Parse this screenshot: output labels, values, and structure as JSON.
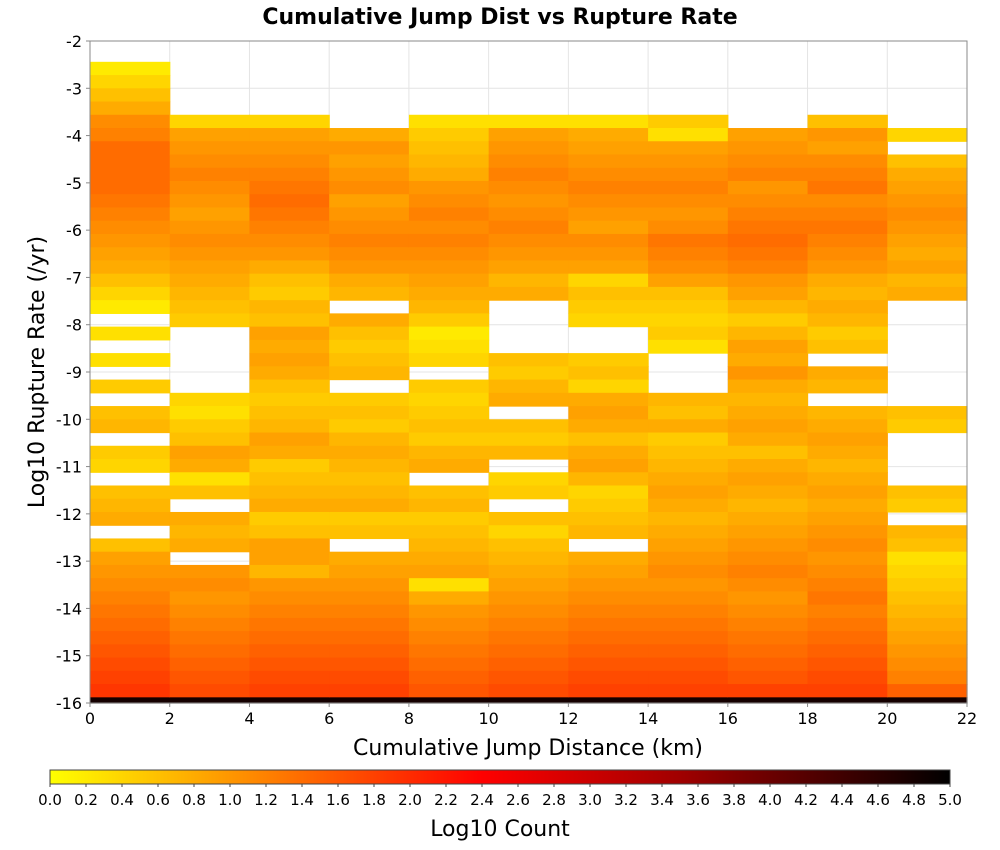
{
  "chart_data": {
    "type": "heatmap",
    "title": "Cumulative Jump Dist vs Rupture Rate",
    "xlabel": "Cumulative Jump Distance (km)",
    "ylabel": "Log10 Rupture Rate (/yr)",
    "xlim": [
      0,
      22
    ],
    "ylim": [
      -16,
      -2
    ],
    "x_ticks": [
      "0",
      "2",
      "4",
      "6",
      "8",
      "10",
      "12",
      "14",
      "16",
      "18",
      "20",
      "22"
    ],
    "y_ticks": [
      "-2",
      "-3",
      "-4",
      "-5",
      "-6",
      "-7",
      "-8",
      "-9",
      "-10",
      "-11",
      "-12",
      "-13",
      "-14",
      "-15",
      "-16"
    ],
    "grid": true,
    "x_bin_width": 2,
    "y_bin_height": 0.28,
    "x_bin_centers": [
      1,
      3,
      5,
      7,
      9,
      11,
      13,
      15,
      17,
      19,
      21
    ],
    "y_bin_lower_edges": [
      -2.72,
      -3.0,
      -3.28,
      -3.56,
      -3.84,
      -4.12,
      -4.4,
      -4.68,
      -4.96,
      -5.24,
      -5.52,
      -5.8,
      -6.08,
      -6.36,
      -6.64,
      -6.92,
      -7.2,
      -7.48,
      -7.76,
      -8.04,
      -8.32,
      -8.6,
      -8.88,
      -9.16,
      -9.44,
      -9.72,
      -10.0,
      -10.28,
      -10.56,
      -10.84,
      -11.12,
      -11.4,
      -11.68,
      -11.96,
      -12.24,
      -12.52,
      -12.8,
      -13.08,
      -13.36,
      -13.64,
      -13.92,
      -14.2,
      -14.48,
      -14.76,
      -15.04,
      -15.32,
      -15.6,
      -15.88,
      -16.16
    ],
    "z_label": "Log10 Count",
    "z_range": [
      0,
      5
    ],
    "null_value_rendered_as": "white",
    "z_values_by_x_bin": [
      [
        0.2,
        0.4,
        0.6,
        0.8,
        1.1,
        1.2,
        1.4,
        1.4,
        1.4,
        1.4,
        1.3,
        1.2,
        1.1,
        1.0,
        0.9,
        0.8,
        0.6,
        0.4,
        0.2,
        null,
        0.3,
        null,
        0.3,
        null,
        0.5,
        null,
        0.6,
        0.7,
        null,
        0.5,
        0.4,
        null,
        0.6,
        0.7,
        0.8,
        null,
        0.6,
        0.9,
        1.0,
        1.1,
        1.2,
        1.3,
        1.4,
        1.5,
        1.6,
        1.7,
        1.8,
        1.9,
        4.8
      ],
      [
        null,
        null,
        null,
        null,
        0.4,
        0.9,
        1.0,
        1.1,
        1.2,
        1.1,
        1.0,
        0.9,
        1.0,
        1.1,
        1.0,
        0.9,
        0.8,
        0.7,
        0.6,
        0.5,
        null,
        null,
        null,
        null,
        null,
        0.4,
        0.3,
        0.5,
        0.6,
        0.9,
        0.8,
        0.3,
        0.6,
        null,
        0.8,
        0.7,
        0.8,
        null,
        1.0,
        1.1,
        1.0,
        1.1,
        1.2,
        1.3,
        1.4,
        1.5,
        1.6,
        1.7,
        4.8
      ],
      [
        null,
        null,
        null,
        null,
        0.4,
        0.9,
        1.0,
        1.1,
        1.2,
        1.3,
        1.4,
        1.3,
        1.2,
        1.1,
        1.0,
        0.8,
        0.6,
        0.5,
        0.7,
        0.6,
        0.9,
        0.8,
        0.9,
        0.8,
        0.6,
        0.5,
        0.6,
        0.7,
        0.9,
        0.8,
        0.5,
        0.6,
        0.7,
        0.8,
        0.5,
        0.6,
        0.9,
        0.9,
        0.7,
        1.0,
        1.1,
        1.2,
        1.3,
        1.4,
        1.5,
        1.6,
        1.7,
        1.8,
        4.8
      ],
      [
        null,
        null,
        null,
        null,
        null,
        0.8,
        1.0,
        0.9,
        1.0,
        1.1,
        0.9,
        1.0,
        1.1,
        1.2,
        1.1,
        1.0,
        0.8,
        0.7,
        null,
        0.8,
        0.6,
        0.5,
        0.6,
        0.7,
        null,
        0.5,
        0.6,
        0.5,
        0.7,
        0.8,
        0.7,
        0.6,
        0.7,
        0.8,
        0.5,
        0.6,
        null,
        0.8,
        0.9,
        1.0,
        1.1,
        1.2,
        1.3,
        1.4,
        1.5,
        1.6,
        1.7,
        1.8,
        4.8
      ],
      [
        null,
        null,
        null,
        null,
        0.3,
        0.5,
        0.6,
        0.7,
        0.8,
        1.0,
        1.1,
        1.2,
        1.1,
        1.2,
        1.1,
        1.0,
        0.9,
        0.8,
        0.7,
        0.5,
        0.2,
        0.3,
        0.4,
        null,
        0.5,
        0.4,
        0.5,
        0.6,
        0.5,
        0.7,
        0.8,
        null,
        0.6,
        0.7,
        0.5,
        0.6,
        0.7,
        0.8,
        0.9,
        0.3,
        0.8,
        1.0,
        1.1,
        1.2,
        1.3,
        1.4,
        1.5,
        1.6,
        4.8
      ],
      [
        null,
        null,
        null,
        null,
        0.3,
        0.9,
        1.0,
        1.1,
        1.2,
        1.1,
        1.0,
        1.1,
        1.2,
        1.1,
        1.0,
        0.9,
        0.7,
        0.8,
        null,
        null,
        null,
        null,
        0.6,
        0.5,
        0.7,
        0.8,
        null,
        0.6,
        0.5,
        0.7,
        null,
        0.4,
        0.5,
        null,
        0.6,
        0.4,
        0.6,
        0.7,
        0.8,
        0.9,
        1.0,
        1.1,
        1.2,
        1.3,
        1.4,
        1.5,
        1.6,
        1.7,
        4.8
      ],
      [
        null,
        null,
        null,
        null,
        0.3,
        0.8,
        0.9,
        1.0,
        1.1,
        1.2,
        1.1,
        1.0,
        0.9,
        1.1,
        1.0,
        0.9,
        0.4,
        0.6,
        0.5,
        0.4,
        null,
        null,
        0.5,
        0.6,
        0.4,
        0.8,
        0.9,
        0.8,
        0.6,
        0.8,
        0.9,
        0.7,
        0.4,
        0.5,
        0.6,
        0.7,
        null,
        0.8,
        0.9,
        1.0,
        1.1,
        1.2,
        1.3,
        1.4,
        1.5,
        1.6,
        1.7,
        1.8,
        4.8
      ],
      [
        null,
        null,
        null,
        null,
        0.5,
        0.3,
        0.9,
        1.0,
        1.1,
        1.2,
        1.1,
        1.0,
        1.1,
        1.3,
        1.2,
        1.1,
        0.9,
        0.6,
        0.5,
        0.4,
        0.5,
        0.3,
        null,
        null,
        null,
        0.7,
        0.6,
        0.8,
        0.5,
        0.6,
        0.7,
        0.8,
        0.9,
        0.8,
        0.7,
        0.8,
        0.9,
        1.0,
        1.1,
        1.0,
        1.1,
        1.2,
        1.3,
        1.4,
        1.5,
        1.6,
        1.7,
        1.8,
        4.8
      ],
      [
        null,
        null,
        null,
        null,
        null,
        0.9,
        1.0,
        1.1,
        1.2,
        1.0,
        1.1,
        1.2,
        1.3,
        1.4,
        1.3,
        1.2,
        1.0,
        0.9,
        0.7,
        0.5,
        0.7,
        0.9,
        0.8,
        1.0,
        0.8,
        0.7,
        0.8,
        0.9,
        0.8,
        0.6,
        0.8,
        0.9,
        0.8,
        0.7,
        0.8,
        0.9,
        1.0,
        1.1,
        1.2,
        1.1,
        1.0,
        1.1,
        1.2,
        1.3,
        1.4,
        1.5,
        1.6,
        1.8,
        4.8
      ],
      [
        null,
        null,
        null,
        null,
        0.6,
        1.0,
        0.9,
        1.1,
        1.2,
        1.3,
        1.1,
        1.2,
        1.3,
        1.2,
        1.1,
        1.0,
        0.8,
        0.7,
        0.8,
        0.7,
        0.5,
        0.6,
        null,
        0.8,
        0.7,
        null,
        0.7,
        0.8,
        0.9,
        0.8,
        0.7,
        0.8,
        0.9,
        0.8,
        0.9,
        1.0,
        1.1,
        1.0,
        1.1,
        1.2,
        1.3,
        1.2,
        1.3,
        1.4,
        1.5,
        1.6,
        1.7,
        1.8,
        4.8
      ],
      [
        null,
        null,
        null,
        null,
        null,
        0.4,
        null,
        0.6,
        0.8,
        0.9,
        1.0,
        1.1,
        1.0,
        0.9,
        0.8,
        0.9,
        0.7,
        0.8,
        null,
        null,
        null,
        null,
        null,
        null,
        null,
        null,
        0.6,
        0.5,
        null,
        null,
        null,
        null,
        0.6,
        0.5,
        null,
        0.7,
        0.6,
        0.3,
        0.4,
        0.5,
        0.6,
        0.7,
        0.8,
        0.9,
        1.0,
        1.1,
        1.2,
        1.5,
        4.8
      ]
    ]
  },
  "colorbar": {
    "ticks": [
      "0.0",
      "0.2",
      "0.4",
      "0.6",
      "0.8",
      "1.0",
      "1.2",
      "1.4",
      "1.6",
      "1.8",
      "2.0",
      "2.2",
      "2.4",
      "2.6",
      "2.8",
      "3.0",
      "3.2",
      "3.4",
      "3.6",
      "3.8",
      "4.0",
      "4.2",
      "4.4",
      "4.6",
      "4.8",
      "5.0"
    ],
    "label": "Log10 Count",
    "colors": [
      "#ffff00",
      "#ff8c00",
      "#ff0000",
      "#a00000",
      "#000000"
    ]
  }
}
